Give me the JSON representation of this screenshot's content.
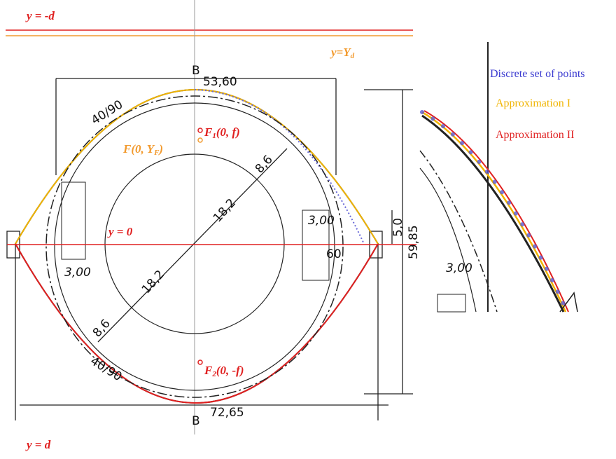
{
  "main": {
    "line_top": "y = -d",
    "line_yd": {
      "main": "y=Y",
      "sub": "d"
    },
    "line_zero": "y = 0",
    "line_bottom": "y = d",
    "focus_f1": {
      "main": "F",
      "sub": "1",
      "rest": "(0, f)"
    },
    "focus_f": {
      "main": "F(0, Y",
      "sub": "F",
      "rest": ")"
    },
    "focus_f2": {
      "main": "F",
      "sub": "2",
      "rest": "(0, -f)"
    },
    "dim_top": "53,60",
    "dim_bottom": "72,65",
    "dim_height": "59,85",
    "dim_offset": "5,0",
    "dim_side": "60",
    "dim_arc_top": "40/90",
    "dim_arc_bottom": "40/90",
    "dim_r_outer_top": "8,6",
    "dim_r_inner_top": "18,2",
    "dim_r_inner_bottom": "18,2",
    "dim_r_outer_bottom": "8,6",
    "dim_left_box": "3,00",
    "dim_right_box": "3,00",
    "section_top": "B",
    "section_bottom": "B"
  },
  "inset": {
    "dim_box": "3,00",
    "legend": [
      "Discrete set of points",
      "Approximation I",
      "Approximation II"
    ]
  }
}
